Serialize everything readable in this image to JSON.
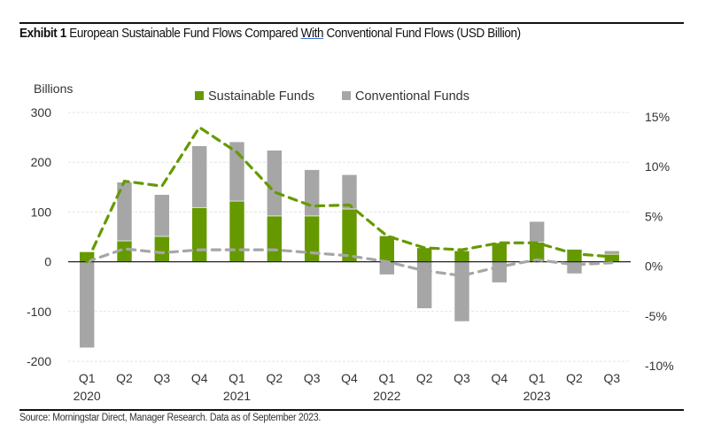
{
  "header": {
    "exhibit_label": "Exhibit 1",
    "title_part1": " European Sustainable Fund Flows Compared ",
    "title_underlined": "With",
    "title_part2": " Conventional Fund Flows (USD Billion)"
  },
  "footer": {
    "source": "Source: Morningstar Direct, Manager Research. Data as of September 2023."
  },
  "colors": {
    "sustainable": "#669900",
    "conventional": "#a6a6a6",
    "axis": "#222222",
    "grid": "#e4e4e4"
  },
  "chart_data": {
    "type": "bar",
    "subtype": "stacked bar with secondary-axis dashed lines",
    "title": "European Sustainable Fund Flows Compared With Conventional Fund Flows (USD Billion)",
    "ylabel": "Billions",
    "ylim": [
      -200,
      300
    ],
    "yticks": [
      "300",
      "200",
      "100",
      "0",
      "-100",
      "-200"
    ],
    "ytick_values": [
      300,
      200,
      100,
      0,
      -100,
      -200
    ],
    "y2lim": [
      -10,
      15
    ],
    "y2ticks": [
      "15%",
      "10%",
      "5%",
      "0%",
      "-5%",
      "-10%"
    ],
    "y2tick_values": [
      15,
      10,
      5,
      0,
      -5,
      -10
    ],
    "grid": true,
    "legend": {
      "placement": "top-center",
      "entries": [
        "Sustainable Funds",
        "Conventional Funds"
      ]
    },
    "categories": [
      "Q1",
      "Q2",
      "Q3",
      "Q4",
      "Q1",
      "Q2",
      "Q3",
      "Q4",
      "Q1",
      "Q2",
      "Q3",
      "Q4",
      "Q1",
      "Q2",
      "Q3"
    ],
    "year_labels": [
      {
        "index": 0,
        "label": "2020"
      },
      {
        "index": 4,
        "label": "2021"
      },
      {
        "index": 8,
        "label": "2022"
      },
      {
        "index": 12,
        "label": "2023"
      }
    ],
    "series": [
      {
        "name": "Sustainable Funds",
        "kind": "bar",
        "axis": "left",
        "values": [
          20,
          42,
          51,
          109,
          122,
          92,
          92,
          106,
          52,
          28,
          22,
          38,
          39,
          25,
          15
        ]
      },
      {
        "name": "Conventional Funds",
        "kind": "bar",
        "axis": "left",
        "values": [
          -173,
          118,
          84,
          124,
          119,
          132,
          93,
          69,
          -26,
          -94,
          -120,
          -42,
          42,
          -24,
          7
        ]
      },
      {
        "name": "Sustainable Funds (organic growth %)",
        "kind": "line-dashed",
        "axis": "right",
        "values": [
          0,
          8.1,
          7.6,
          13.5,
          11.0,
          7.0,
          5.6,
          5.7,
          2.6,
          1.4,
          1.2,
          1.9,
          1.9,
          0.8,
          0.5
        ]
      },
      {
        "name": "Conventional Funds (organic growth %)",
        "kind": "line-dashed",
        "axis": "right",
        "values": [
          0,
          1.3,
          0.9,
          1.2,
          1.2,
          1.2,
          0.9,
          0.6,
          0,
          -0.9,
          -1.4,
          -0.5,
          0.2,
          -0.3,
          -0.1
        ]
      }
    ]
  }
}
